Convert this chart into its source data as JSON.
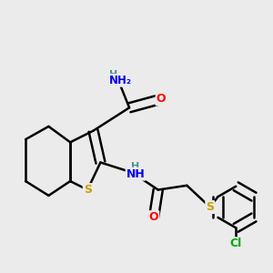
{
  "background_color": "#ebebeb",
  "bond_color": "#000000",
  "atom_colors": {
    "S": "#c8a000",
    "O": "#ff0000",
    "N": "#0000ee",
    "H": "#4a9090",
    "Cl": "#00aa00",
    "C": "#000000"
  },
  "figsize": [
    3.0,
    3.0
  ],
  "dpi": 100
}
